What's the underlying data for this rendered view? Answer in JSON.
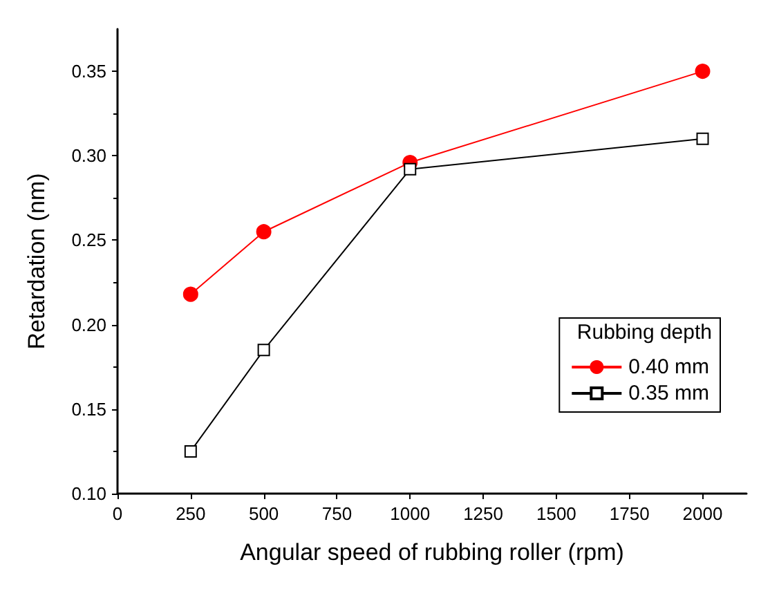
{
  "chart_data": {
    "type": "line",
    "xlabel": "Angular speed of rubbing roller (rpm)",
    "ylabel": "Retardation (nm)",
    "legend_title": "Rubbing depth",
    "x": [
      250,
      500,
      1000,
      2000
    ],
    "series": [
      {
        "name": "0.40 mm",
        "color": "#ff0000",
        "marker": "circle",
        "values": [
          0.218,
          0.255,
          0.296,
          0.35
        ]
      },
      {
        "name": "0.35 mm",
        "color": "#000000",
        "marker": "square",
        "values": [
          0.125,
          0.185,
          0.292,
          0.31
        ]
      }
    ],
    "xlim": [
      0,
      2150
    ],
    "xticks": [
      0,
      250,
      500,
      750,
      1000,
      1250,
      1500,
      1750,
      2000
    ],
    "ylim": [
      0.1,
      0.375
    ],
    "yticks": [
      {
        "value": 0.1,
        "label": "0.10"
      },
      {
        "value": 0.15,
        "label": "0.15"
      },
      {
        "value": 0.2,
        "label": "0.20"
      },
      {
        "value": 0.25,
        "label": "0.25"
      },
      {
        "value": 0.3,
        "label": "0.30"
      },
      {
        "value": 0.35,
        "label": "0.35"
      }
    ],
    "grid": false,
    "legend": "bottom right",
    "line_style": "solid"
  }
}
